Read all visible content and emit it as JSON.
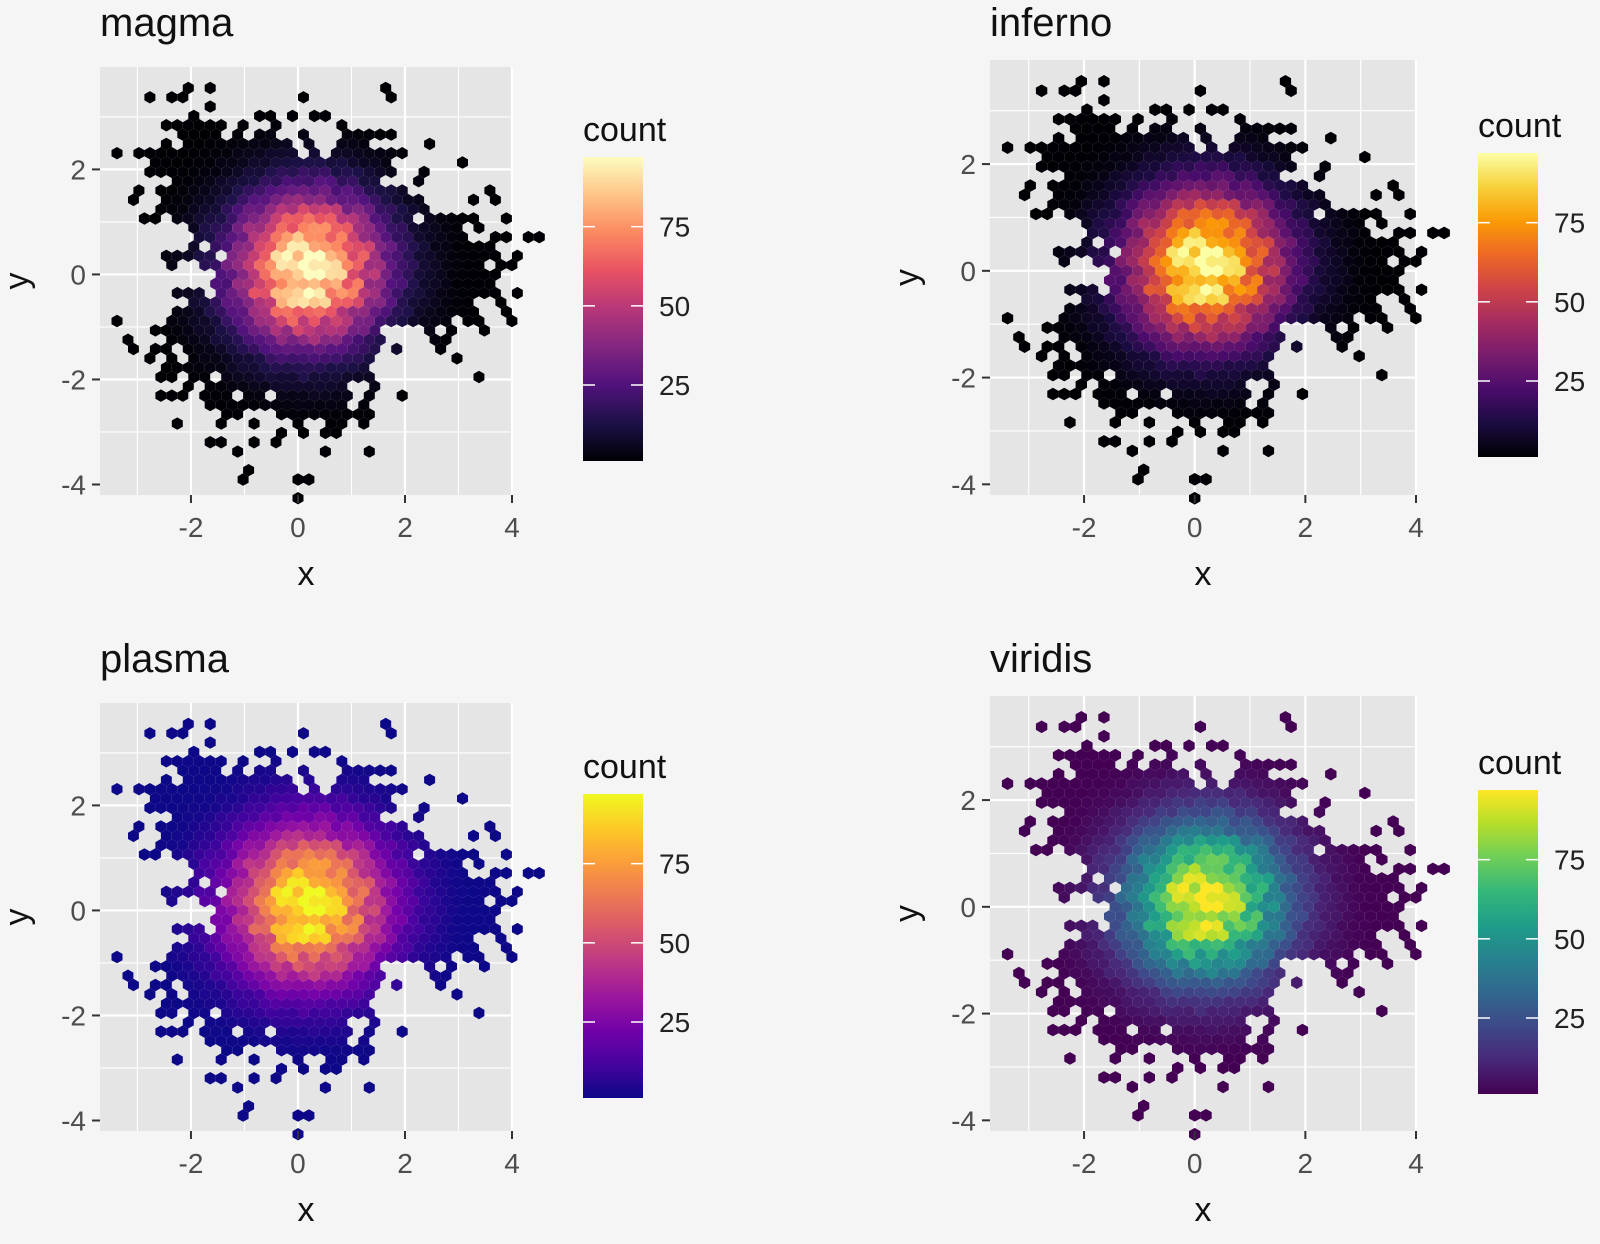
{
  "figure": {
    "legend_title": "count",
    "x_label": "x",
    "y_label": "y"
  },
  "chart_data": [
    {
      "type": "heatmap",
      "subtype": "hexbin",
      "title": "magma",
      "xlabel": "x",
      "ylabel": "y",
      "xlim": [
        -3.7,
        4.0
      ],
      "ylim": [
        -4.2,
        3.95
      ],
      "xticks": [
        "-2",
        "0",
        "2",
        "4"
      ],
      "yticks": [
        "-4",
        "-2",
        "0",
        "2"
      ],
      "grid": true,
      "legend": {
        "title": "count",
        "breaks": [
          25,
          50,
          75
        ],
        "range": [
          1,
          97
        ],
        "placement": "right"
      },
      "density": {
        "distribution": "bivariate normal",
        "center": [
          0.2,
          0.1
        ],
        "sd": [
          1.0,
          1.0
        ],
        "max_count": 97
      },
      "colors": [
        "#000004",
        "#1d1147",
        "#51127c",
        "#822681",
        "#b73779",
        "#e75263",
        "#fc8961",
        "#fec488",
        "#fcfdbf"
      ]
    },
    {
      "type": "heatmap",
      "subtype": "hexbin",
      "title": "inferno",
      "xlabel": "x",
      "ylabel": "y",
      "xlim": [
        -3.7,
        4.0
      ],
      "ylim": [
        -4.2,
        3.95
      ],
      "xticks": [
        "-2",
        "0",
        "2",
        "4"
      ],
      "yticks": [
        "-4",
        "-2",
        "0",
        "2"
      ],
      "grid": true,
      "legend": {
        "title": "count",
        "breaks": [
          25,
          50,
          75
        ],
        "range": [
          1,
          97
        ],
        "placement": "right"
      },
      "density": {
        "distribution": "bivariate normal",
        "center": [
          0.2,
          0.1
        ],
        "sd": [
          1.0,
          1.0
        ],
        "max_count": 97
      },
      "colors": [
        "#000004",
        "#1b0c41",
        "#4a0c6b",
        "#781c6d",
        "#a52c60",
        "#cf4446",
        "#ed6925",
        "#fb9b06",
        "#f7d13d",
        "#fcffa4"
      ]
    },
    {
      "type": "heatmap",
      "subtype": "hexbin",
      "title": "plasma",
      "xlabel": "x",
      "ylabel": "y",
      "xlim": [
        -3.7,
        4.0
      ],
      "ylim": [
        -4.2,
        3.95
      ],
      "xticks": [
        "-2",
        "0",
        "2",
        "4"
      ],
      "yticks": [
        "-4",
        "-2",
        "0",
        "2"
      ],
      "grid": true,
      "legend": {
        "title": "count",
        "breaks": [
          25,
          50,
          75
        ],
        "range": [
          1,
          97
        ],
        "placement": "right"
      },
      "density": {
        "distribution": "bivariate normal",
        "center": [
          0.2,
          0.1
        ],
        "sd": [
          1.0,
          1.0
        ],
        "max_count": 97
      },
      "colors": [
        "#0d0887",
        "#46039f",
        "#7201a8",
        "#9c179e",
        "#bd3786",
        "#d8576b",
        "#ed7953",
        "#fb9f3a",
        "#fdca26",
        "#f0f921"
      ]
    },
    {
      "type": "heatmap",
      "subtype": "hexbin",
      "title": "viridis",
      "xlabel": "x",
      "ylabel": "y",
      "xlim": [
        -3.7,
        4.0
      ],
      "ylim": [
        -4.2,
        3.95
      ],
      "xticks": [
        "-2",
        "0",
        "2",
        "4"
      ],
      "yticks": [
        "-4",
        "-2",
        "0",
        "2"
      ],
      "grid": true,
      "legend": {
        "title": "count",
        "breaks": [
          25,
          50,
          75
        ],
        "range": [
          1,
          97
        ],
        "placement": "right"
      },
      "density": {
        "distribution": "bivariate normal",
        "center": [
          0.2,
          0.1
        ],
        "sd": [
          1.0,
          1.0
        ],
        "max_count": 97
      },
      "colors": [
        "#440154",
        "#482878",
        "#3e4989",
        "#31688e",
        "#26828e",
        "#1f9e89",
        "#35b779",
        "#6ece58",
        "#b5de2b",
        "#fde725"
      ]
    }
  ],
  "style": {
    "page_background": "#f4f5f4",
    "panel_background": "#e5e5e5",
    "grid_major": "#ffffff",
    "tick_color": "#333333"
  }
}
